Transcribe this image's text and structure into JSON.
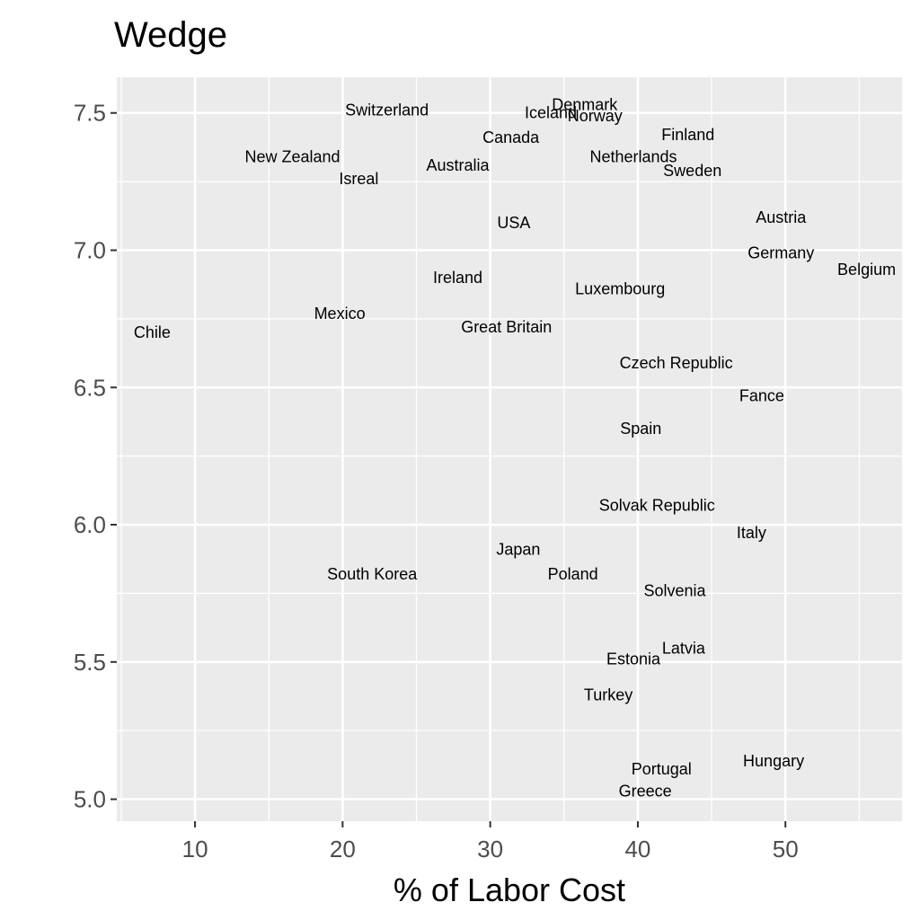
{
  "chart_data": {
    "type": "scatter",
    "title": "Wedge",
    "xlabel": "% of Labor Cost",
    "ylabel": "",
    "xlim": [
      4.7,
      57.9
    ],
    "ylim": [
      4.92,
      7.63
    ],
    "x_ticks": [
      10,
      20,
      30,
      40,
      50
    ],
    "y_ticks": [
      5.0,
      5.5,
      6.0,
      6.5,
      7.0,
      7.5
    ],
    "x_tick_labels": [
      "10",
      "20",
      "30",
      "40",
      "50"
    ],
    "y_tick_labels": [
      "5.0",
      "5.5",
      "6.0",
      "6.5",
      "7.0",
      "7.5"
    ],
    "grid": true,
    "marker": "text",
    "points": [
      {
        "label": "Switzerland",
        "x": 23.0,
        "y": 7.51
      },
      {
        "label": "Denmark",
        "x": 36.4,
        "y": 7.53
      },
      {
        "label": "Iceland",
        "x": 34.1,
        "y": 7.5
      },
      {
        "label": "Norway",
        "x": 37.1,
        "y": 7.49
      },
      {
        "label": "Canada",
        "x": 31.4,
        "y": 7.41
      },
      {
        "label": "Finland",
        "x": 43.4,
        "y": 7.42
      },
      {
        "label": "New Zealand",
        "x": 16.6,
        "y": 7.34
      },
      {
        "label": "Netherlands",
        "x": 39.7,
        "y": 7.34
      },
      {
        "label": "Australia",
        "x": 27.8,
        "y": 7.31
      },
      {
        "label": "Sweden",
        "x": 43.7,
        "y": 7.29
      },
      {
        "label": "Isreal",
        "x": 21.1,
        "y": 7.26
      },
      {
        "label": "USA",
        "x": 31.6,
        "y": 7.1
      },
      {
        "label": "Austria",
        "x": 49.7,
        "y": 7.12
      },
      {
        "label": "Germany",
        "x": 49.7,
        "y": 6.99
      },
      {
        "label": "Belgium",
        "x": 55.5,
        "y": 6.93
      },
      {
        "label": "Ireland",
        "x": 27.8,
        "y": 6.9
      },
      {
        "label": "Luxembourg",
        "x": 38.8,
        "y": 6.86
      },
      {
        "label": "Mexico",
        "x": 19.8,
        "y": 6.77
      },
      {
        "label": "Chile",
        "x": 7.1,
        "y": 6.7
      },
      {
        "label": "Great Britain",
        "x": 31.1,
        "y": 6.72
      },
      {
        "label": "Czech Republic",
        "x": 42.6,
        "y": 6.59
      },
      {
        "label": "Fance",
        "x": 48.4,
        "y": 6.47
      },
      {
        "label": "Spain",
        "x": 40.2,
        "y": 6.35
      },
      {
        "label": "Solvak Republic",
        "x": 41.3,
        "y": 6.07
      },
      {
        "label": "Italy",
        "x": 47.7,
        "y": 5.97
      },
      {
        "label": "Japan",
        "x": 31.9,
        "y": 5.91
      },
      {
        "label": "South Korea",
        "x": 22.0,
        "y": 5.82
      },
      {
        "label": "Poland",
        "x": 35.6,
        "y": 5.82
      },
      {
        "label": "Solvenia",
        "x": 42.5,
        "y": 5.76
      },
      {
        "label": "Latvia",
        "x": 43.1,
        "y": 5.55
      },
      {
        "label": "Estonia",
        "x": 39.7,
        "y": 5.51
      },
      {
        "label": "Turkey",
        "x": 38.0,
        "y": 5.38
      },
      {
        "label": "Portugal",
        "x": 41.6,
        "y": 5.11
      },
      {
        "label": "Hungary",
        "x": 49.2,
        "y": 5.14
      },
      {
        "label": "Greece",
        "x": 40.5,
        "y": 5.03
      }
    ]
  }
}
